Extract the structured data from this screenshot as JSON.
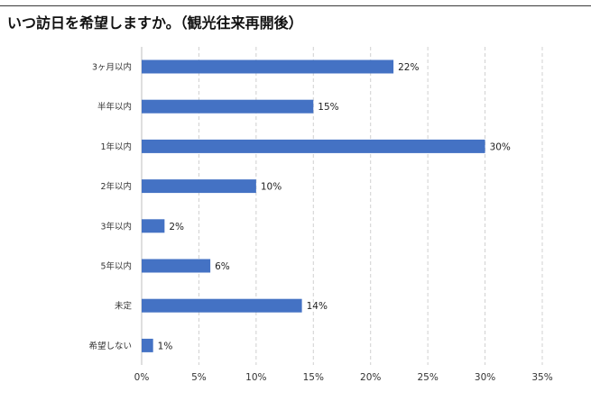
{
  "chart_data": {
    "type": "bar",
    "orientation": "horizontal",
    "title": "いつ訪日を希望しますか。（観光往来再開後）",
    "categories": [
      "3ヶ月以内",
      "半年以内",
      "1年以内",
      "2年以内",
      "3年以内",
      "5年以内",
      "未定",
      "希望しない"
    ],
    "values": [
      22,
      15,
      30,
      10,
      2,
      6,
      14,
      1
    ],
    "value_labels": [
      "22%",
      "15%",
      "30%",
      "10%",
      "2%",
      "6%",
      "14%",
      "1%"
    ],
    "xticks": [
      "0%",
      "5%",
      "10%",
      "15%",
      "20%",
      "25%",
      "30%",
      "35%"
    ],
    "xlim": [
      0,
      35
    ],
    "grid": "vertical-dashed",
    "bar_color": "#4472c4",
    "grid_color": "#d0d0d0"
  }
}
